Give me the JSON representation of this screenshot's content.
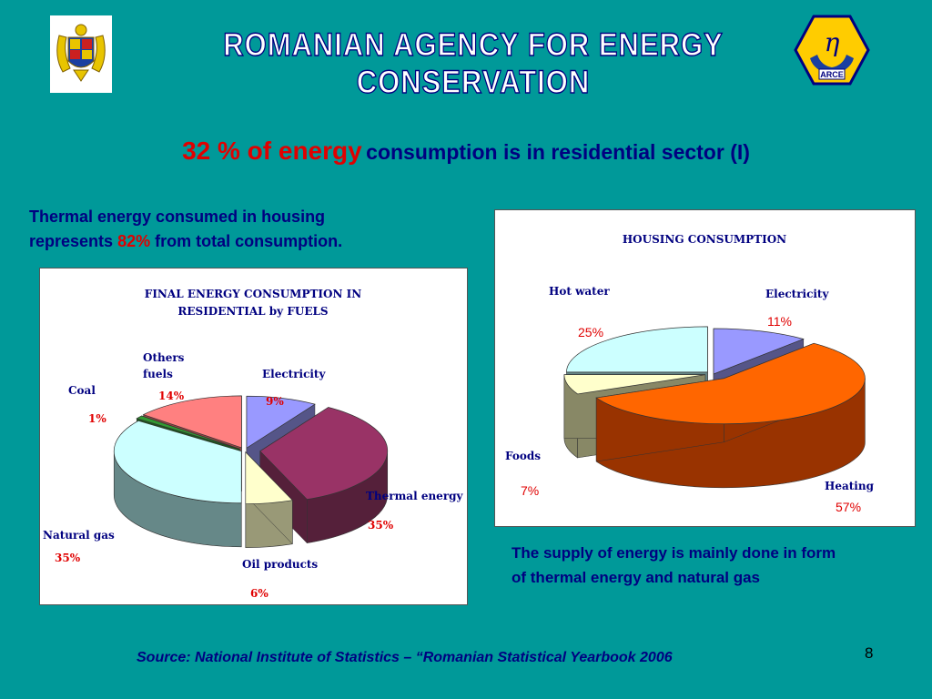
{
  "header": {
    "agency_title": "ROMANIAN AGENCY FOR ENERGY CONSERVATION",
    "left_logo": "coat-of-arms",
    "right_logo": "arce-logo",
    "right_logo_text": "ARCE",
    "right_logo_symbol": "η"
  },
  "title": {
    "part1": "32 % of  energy",
    "part2": "consumption is in residential sector (I)"
  },
  "notes": {
    "thermal_line1": "Thermal energy consumed in housing",
    "thermal_line2_pre": "represents ",
    "thermal_highlight": "82%",
    "thermal_line2_post": " from total consumption.",
    "supply_line1": "The supply of energy is mainly done in form",
    "supply_line2": "of  thermal energy and natural gas",
    "source": "Source: National Institute of Statistics – “Romanian Statistical Yearbook 2006",
    "page_number": "8"
  },
  "chart_data": [
    {
      "type": "pie",
      "title_line1": "FINAL ENERGY CONSUMPTION IN",
      "title_line2": "RESIDENTIAL by FUELS",
      "slices": [
        {
          "label": "Electricity",
          "label_lines": [
            "Electricity"
          ],
          "value": 9,
          "display": "9%",
          "color": "#9999ff",
          "side": "#555588"
        },
        {
          "label": "Thermal energy",
          "label_lines": [
            "Thermal energy"
          ],
          "value": 35,
          "display": "35%",
          "color": "#993366",
          "side": "#55203a"
        },
        {
          "label": "Oil products",
          "label_lines": [
            "Oil products"
          ],
          "value": 6,
          "display": "6%",
          "color": "#ffffcc",
          "side": "#999977"
        },
        {
          "label": "Natural gas",
          "label_lines": [
            "Natural gas"
          ],
          "value": 35,
          "display": "35%",
          "color": "#ccffff",
          "side": "#668888"
        },
        {
          "label": "Coal",
          "label_lines": [
            "Coal"
          ],
          "value": 1,
          "display": "1%",
          "color": "#339933",
          "side": "#1a5a1a"
        },
        {
          "label": "Others fuels",
          "label_lines": [
            "Others",
            "fuels"
          ],
          "value": 14,
          "display": "14%",
          "color": "#ff8080",
          "side": "#994444"
        }
      ]
    },
    {
      "type": "pie",
      "title_line1": "HOUSING CONSUMPTION",
      "slices": [
        {
          "label": "Electricity",
          "label_lines": [
            "Electricity"
          ],
          "value": 11,
          "display": "11%",
          "color": "#9999ff",
          "side": "#555588"
        },
        {
          "label": "Heating",
          "label_lines": [
            "Heating"
          ],
          "value": 57,
          "display": "57%",
          "color": "#ff6600",
          "side": "#993300"
        },
        {
          "label": "Foods",
          "label_lines": [
            "Foods"
          ],
          "value": 7,
          "display": "7%",
          "color": "#ffffcc",
          "side": "#888866"
        },
        {
          "label": "Hot water",
          "label_lines": [
            "Hot water"
          ],
          "value": 25,
          "display": "25%",
          "color": "#ccffff",
          "side": "#668888"
        }
      ]
    }
  ]
}
